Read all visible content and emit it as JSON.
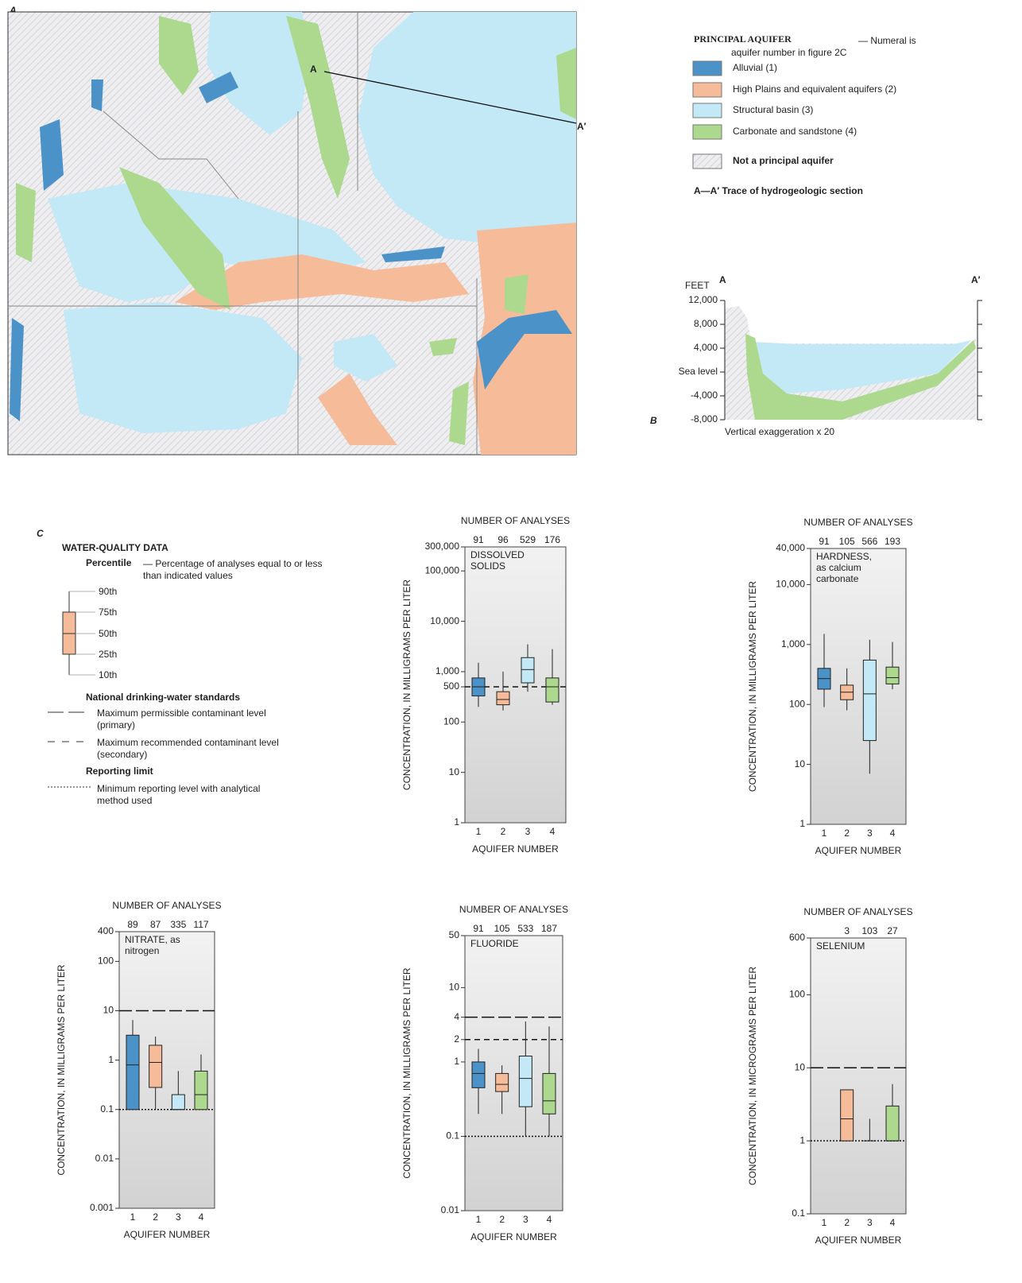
{
  "map": {
    "label": "A",
    "trace_start": "A",
    "trace_end": "A′",
    "legend": {
      "title": "PRINCIPAL AQUIFER",
      "note": "— Numeral is aquifer number in figure 2C",
      "items": [
        {
          "label": "Alluvial (1)",
          "color": "#4b92c9"
        },
        {
          "label": "High Plains and equivalent aquifers (2)",
          "color": "#f6bb98"
        },
        {
          "label": "Structural basin (3)",
          "color": "#c3e9f6"
        },
        {
          "label": "Carbonate and sandstone (4)",
          "color": "#acd98e"
        },
        {
          "label": "Not a principal aquifer",
          "color": "#e6e6ea"
        }
      ],
      "trace": "A—A′ Trace of hydrogeologic section"
    }
  },
  "section": {
    "label": "B",
    "unit": "FEET",
    "start": "A",
    "end": "A′",
    "ylim": [
      -8000,
      12000
    ],
    "yticks": [
      {
        "value": 12000,
        "label": "12,000"
      },
      {
        "value": 8000,
        "label": "8,000"
      },
      {
        "value": 4000,
        "label": "4,000"
      },
      {
        "value": 0,
        "label": "Sea level"
      },
      {
        "value": -4000,
        "label": "-4,000"
      },
      {
        "value": -8000,
        "label": "-8,000"
      }
    ],
    "note": "Vertical exaggeration x 20"
  },
  "legend_c": {
    "label": "C",
    "title": "WATER-QUALITY DATA",
    "percentile_title": "Percentile",
    "percentile_note": "— Percentage of analyses equal to or less than indicated values",
    "percentiles": [
      "90th",
      "75th",
      "50th",
      "25th",
      "10th"
    ],
    "standards_title": "National drinking-water standards",
    "primary": "Maximum permissible contaminant level (primary)",
    "secondary": "Maximum recommended contaminant level (secondary)",
    "reporting_title": "Reporting limit",
    "reporting": "Minimum reporting level with analytical method used"
  },
  "chart_data": [
    {
      "type": "box",
      "title": "DISSOLVED SOLIDS",
      "counts_title": "NUMBER OF ANALYSES",
      "counts": [
        91,
        96,
        529,
        176
      ],
      "categories": [
        "1",
        "2",
        "3",
        "4"
      ],
      "xlabel": "AQUIFER NUMBER",
      "ylabel": "CONCENTRATION, IN MILLIGRAMS PER LITER",
      "log": true,
      "ylim": [
        1,
        300000
      ],
      "yticks": [
        1,
        10,
        100,
        500,
        {
          "value": 1000,
          "label": "1,000"
        },
        {
          "value": 10000,
          "label": "10,000"
        },
        {
          "value": 100000,
          "label": "100,000"
        },
        {
          "value": 300000,
          "label": "300,000"
        }
      ],
      "colors": [
        "#4b92c9",
        "#f6bb98",
        "#c3e9f6",
        "#acd98e"
      ],
      "p10": [
        200,
        170,
        400,
        220
      ],
      "p25": [
        330,
        220,
        600,
        250
      ],
      "p50": [
        500,
        280,
        1100,
        500
      ],
      "p75": [
        750,
        400,
        1900,
        750
      ],
      "p90": [
        1500,
        1000,
        3500,
        2800
      ],
      "lines": [
        {
          "style": "secondary",
          "value": 500
        }
      ]
    },
    {
      "type": "box",
      "title": "HARDNESS, as calcium carbonate",
      "counts_title": "NUMBER OF ANALYSES",
      "counts": [
        91,
        105,
        566,
        193
      ],
      "categories": [
        "1",
        "2",
        "3",
        "4"
      ],
      "xlabel": "AQUIFER NUMBER",
      "ylabel": "CONCENTRATION, IN MILLIGRAMS PER LITER",
      "log": true,
      "ylim": [
        1,
        40000
      ],
      "yticks": [
        1,
        10,
        100,
        {
          "value": 1000,
          "label": "1,000"
        },
        {
          "value": 10000,
          "label": "10,000"
        },
        {
          "value": 40000,
          "label": "40,000"
        }
      ],
      "colors": [
        "#4b92c9",
        "#f6bb98",
        "#c3e9f6",
        "#acd98e"
      ],
      "p10": [
        90,
        80,
        7,
        180
      ],
      "p25": [
        180,
        120,
        25,
        220
      ],
      "p50": [
        270,
        160,
        150,
        280
      ],
      "p75": [
        400,
        210,
        550,
        420
      ],
      "p90": [
        1500,
        400,
        1200,
        1100
      ],
      "lines": []
    },
    {
      "type": "box",
      "title": "NITRATE, as nitrogen",
      "counts_title": "NUMBER OF ANALYSES",
      "counts": [
        89,
        87,
        335,
        117
      ],
      "categories": [
        "1",
        "2",
        "3",
        "4"
      ],
      "xlabel": "AQUIFER NUMBER",
      "ylabel": "CONCENTRATION, IN MILLIGRAMS PER LITER",
      "log": true,
      "ylim": [
        0.001,
        400
      ],
      "yticks": [
        0.001,
        0.01,
        0.1,
        1,
        10,
        100,
        400
      ],
      "colors": [
        "#4b92c9",
        "#f6bb98",
        "#c3e9f6",
        "#acd98e"
      ],
      "p10": [
        0.1,
        0.1,
        0.1,
        0.1
      ],
      "p25": [
        0.1,
        0.28,
        0.1,
        0.1
      ],
      "p50": [
        0.8,
        0.9,
        0.1,
        0.2
      ],
      "p75": [
        3.2,
        2,
        0.2,
        0.6
      ],
      "p90": [
        6.5,
        3,
        0.6,
        1.3
      ],
      "lines": [
        {
          "style": "primary",
          "value": 10
        },
        {
          "style": "reporting",
          "value": 0.1
        }
      ]
    },
    {
      "type": "box",
      "title": "FLUORIDE",
      "counts_title": "NUMBER OF ANALYSES",
      "counts": [
        91,
        105,
        533,
        187
      ],
      "categories": [
        "1",
        "2",
        "3",
        "4"
      ],
      "xlabel": "AQUIFER NUMBER",
      "ylabel": "CONCENTRATION, IN MILLIGRAMS PER LITER",
      "log": true,
      "ylim": [
        0.01,
        50
      ],
      "yticks": [
        0.01,
        0.1,
        1,
        2,
        4,
        10,
        50
      ],
      "colors": [
        "#4b92c9",
        "#f6bb98",
        "#c3e9f6",
        "#acd98e"
      ],
      "p10": [
        0.2,
        0.2,
        0.1,
        0.1
      ],
      "p25": [
        0.45,
        0.4,
        0.25,
        0.2
      ],
      "p50": [
        0.7,
        0.5,
        0.6,
        0.3
      ],
      "p75": [
        1,
        0.7,
        1.2,
        0.7
      ],
      "p90": [
        1.5,
        0.9,
        3.5,
        3
      ],
      "lines": [
        {
          "style": "primary",
          "value": 4
        },
        {
          "style": "secondary",
          "value": 2
        },
        {
          "style": "reporting",
          "value": 0.1
        }
      ]
    },
    {
      "type": "box",
      "title": "SELENIUM",
      "counts_title": "NUMBER OF ANALYSES",
      "counts": [
        null,
        3,
        103,
        27
      ],
      "categories": [
        "1",
        "2",
        "3",
        "4"
      ],
      "xlabel": "AQUIFER NUMBER",
      "ylabel": "CONCENTRATION, IN MICROGRAMS PER LITER",
      "log": true,
      "ylim": [
        0.1,
        600
      ],
      "yticks": [
        0.1,
        1,
        10,
        100,
        600
      ],
      "colors": [
        "#4b92c9",
        "#f6bb98",
        "#c3e9f6",
        "#acd98e"
      ],
      "p10": [
        null,
        1,
        1,
        1
      ],
      "p25": [
        null,
        1,
        1,
        1
      ],
      "p50": [
        null,
        2,
        1,
        1
      ],
      "p75": [
        null,
        5,
        1,
        3
      ],
      "p90": [
        null,
        5,
        2,
        6
      ],
      "lines": [
        {
          "style": "primary",
          "value": 10
        },
        {
          "style": "reporting",
          "value": 1
        }
      ]
    }
  ]
}
